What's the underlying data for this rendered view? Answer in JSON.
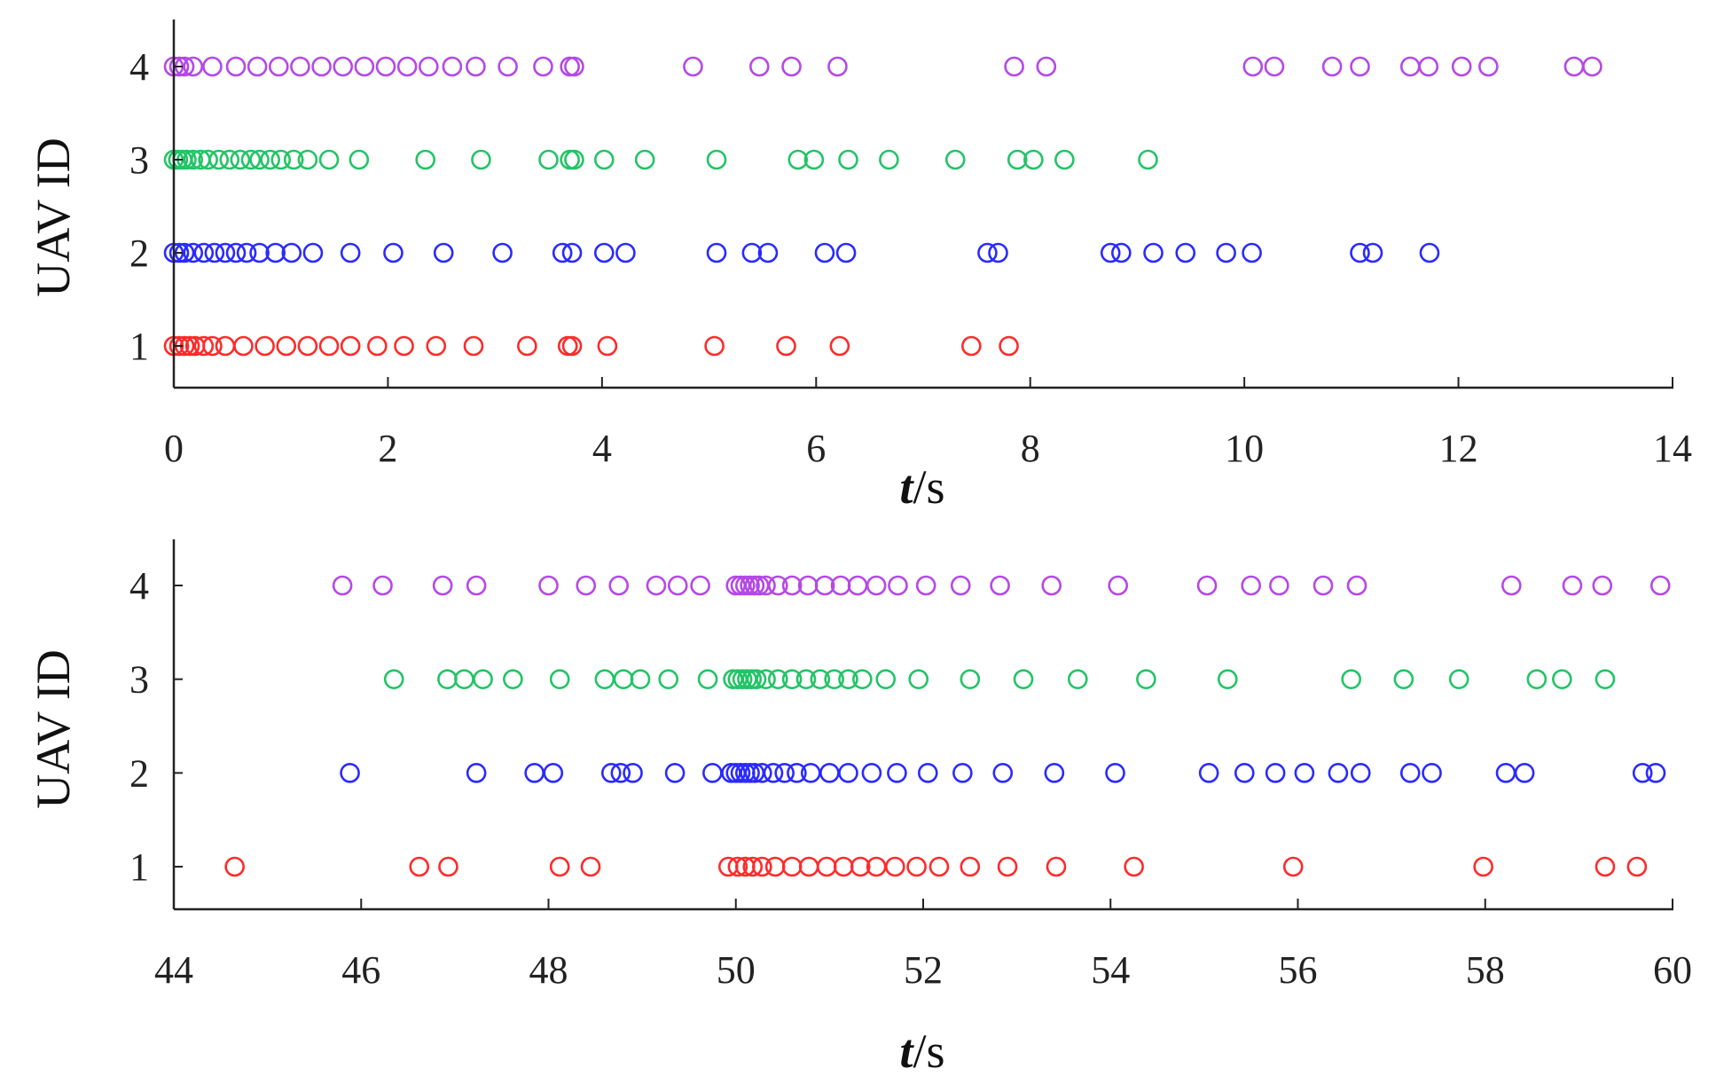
{
  "chart_data": [
    {
      "type": "scatter",
      "xlabel_var": "t",
      "xlabel_unit": "/s",
      "ylabel": "UAV ID",
      "xlim": [
        0,
        14
      ],
      "ylim": [
        0.5,
        4.5
      ],
      "xticks": [
        0,
        2,
        4,
        6,
        8,
        10,
        12,
        14
      ],
      "yticks": [
        1,
        2,
        3,
        4
      ],
      "grid": false,
      "marker": "open-circle",
      "series": [
        {
          "y": 1,
          "color": "#ff2a2a",
          "x": [
            0.0,
            0.05,
            0.1,
            0.15,
            0.2,
            0.28,
            0.36,
            0.48,
            0.65,
            0.85,
            1.05,
            1.25,
            1.45,
            1.65,
            1.9,
            2.15,
            2.45,
            2.8,
            3.3,
            3.68,
            3.72,
            4.05,
            5.05,
            5.72,
            6.22,
            7.45,
            7.8
          ]
        },
        {
          "y": 2,
          "color": "#2a2aff",
          "x": [
            0.0,
            0.05,
            0.1,
            0.18,
            0.28,
            0.38,
            0.48,
            0.58,
            0.68,
            0.8,
            0.95,
            1.1,
            1.3,
            1.65,
            2.05,
            2.52,
            3.07,
            3.63,
            3.72,
            4.02,
            4.22,
            5.07,
            5.4,
            5.55,
            6.08,
            6.28,
            7.6,
            7.7,
            8.75,
            8.85,
            9.15,
            9.45,
            9.83,
            10.07,
            11.08,
            11.2,
            11.73
          ]
        },
        {
          "y": 3,
          "color": "#22c466",
          "x": [
            0.0,
            0.04,
            0.08,
            0.12,
            0.18,
            0.25,
            0.32,
            0.42,
            0.52,
            0.62,
            0.72,
            0.8,
            0.9,
            1.0,
            1.12,
            1.25,
            1.45,
            1.73,
            2.35,
            2.87,
            3.5,
            3.7,
            3.74,
            4.02,
            4.4,
            5.07,
            5.83,
            5.98,
            6.3,
            6.68,
            7.3,
            7.88,
            8.03,
            8.32,
            9.1
          ]
        },
        {
          "y": 4,
          "color": "#b548e6",
          "x": [
            0.0,
            0.05,
            0.1,
            0.18,
            0.36,
            0.58,
            0.78,
            0.98,
            1.18,
            1.38,
            1.58,
            1.78,
            1.98,
            2.18,
            2.38,
            2.6,
            2.82,
            3.12,
            3.45,
            3.7,
            3.74,
            4.85,
            5.47,
            5.77,
            6.2,
            7.85,
            8.15,
            10.08,
            10.28,
            10.82,
            11.08,
            11.55,
            11.72,
            12.03,
            12.28,
            13.08,
            13.25
          ]
        }
      ]
    },
    {
      "type": "scatter",
      "xlabel_var": "t",
      "xlabel_unit": "/s",
      "ylabel": "UAV ID",
      "xlim": [
        44,
        60
      ],
      "ylim": [
        0.5,
        4.5
      ],
      "xticks": [
        44,
        46,
        48,
        50,
        52,
        54,
        56,
        58,
        60
      ],
      "yticks": [
        1,
        2,
        3,
        4
      ],
      "grid": false,
      "marker": "open-circle",
      "series": [
        {
          "y": 1,
          "color": "#ff2a2a",
          "x": [
            44.65,
            46.62,
            46.93,
            48.12,
            48.45,
            49.92,
            50.02,
            50.1,
            50.18,
            50.28,
            50.42,
            50.6,
            50.78,
            50.97,
            51.15,
            51.33,
            51.5,
            51.7,
            51.93,
            52.17,
            52.5,
            52.9,
            53.42,
            54.25,
            55.95,
            57.98,
            59.28,
            59.62
          ]
        },
        {
          "y": 2,
          "color": "#2a2aff",
          "x": [
            45.88,
            47.23,
            47.85,
            48.05,
            48.67,
            48.77,
            48.9,
            49.35,
            49.75,
            49.95,
            50.0,
            50.05,
            50.1,
            50.15,
            50.2,
            50.28,
            50.4,
            50.52,
            50.65,
            50.8,
            51.0,
            51.2,
            51.45,
            51.72,
            52.05,
            52.42,
            52.85,
            53.4,
            54.05,
            55.05,
            55.43,
            55.76,
            56.07,
            56.43,
            56.67,
            57.2,
            57.43,
            58.22,
            58.42,
            59.68,
            59.82
          ]
        },
        {
          "y": 3,
          "color": "#22c466",
          "x": [
            46.35,
            46.92,
            47.1,
            47.3,
            47.62,
            48.12,
            48.6,
            48.8,
            48.98,
            49.28,
            49.7,
            49.97,
            50.02,
            50.07,
            50.12,
            50.17,
            50.22,
            50.32,
            50.45,
            50.6,
            50.75,
            50.9,
            51.05,
            51.2,
            51.35,
            51.6,
            51.95,
            52.5,
            53.07,
            53.65,
            54.38,
            55.25,
            56.57,
            57.13,
            57.72,
            58.55,
            58.82,
            59.28
          ]
        },
        {
          "y": 4,
          "color": "#b548e6",
          "x": [
            45.8,
            46.23,
            46.87,
            47.23,
            48.0,
            48.4,
            48.75,
            49.15,
            49.38,
            49.62,
            50.0,
            50.05,
            50.1,
            50.15,
            50.2,
            50.25,
            50.32,
            50.45,
            50.6,
            50.77,
            50.95,
            51.12,
            51.3,
            51.5,
            51.73,
            52.03,
            52.4,
            52.82,
            53.37,
            54.08,
            55.03,
            55.5,
            55.8,
            56.27,
            56.63,
            58.28,
            58.93,
            59.25,
            59.87
          ]
        }
      ]
    }
  ]
}
